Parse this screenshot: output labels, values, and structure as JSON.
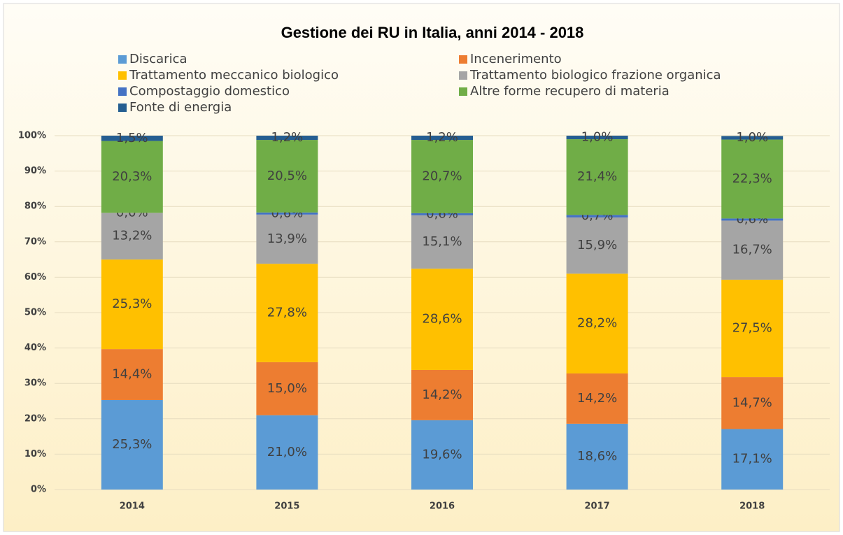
{
  "chart_data": {
    "type": "stacked_bar",
    "title": "Gestione dei RU in Italia, anni 2014 - 2018",
    "categories": [
      "2014",
      "2015",
      "2016",
      "2017",
      "2018"
    ],
    "series": [
      {
        "name": "Discarica",
        "color": "#5b9bd5",
        "values": [
          25.3,
          21.0,
          19.6,
          18.6,
          17.1
        ],
        "value_labels": [
          "25,3%",
          "21,0%",
          "19,6%",
          "18,6%",
          "17,1%"
        ]
      },
      {
        "name": "Incenerimento",
        "color": "#ed7d31",
        "values": [
          14.4,
          15.0,
          14.2,
          14.2,
          14.7
        ],
        "value_labels": [
          "14,4%",
          "15,0%",
          "14,2%",
          "14,2%",
          "14,7%"
        ]
      },
      {
        "name": "Trattamento meccanico biologico",
        "color": "#ffc000",
        "values": [
          25.3,
          27.8,
          28.6,
          28.2,
          27.5
        ],
        "value_labels": [
          "25,3%",
          "27,8%",
          "28,6%",
          "28,2%",
          "27,5%"
        ]
      },
      {
        "name": "Trattamento biologico frazione organica",
        "color": "#a5a5a5",
        "values": [
          13.2,
          13.9,
          15.1,
          15.9,
          16.7
        ],
        "value_labels": [
          "13,2%",
          "13,9%",
          "15,1%",
          "15,9%",
          "16,7%"
        ]
      },
      {
        "name": "Compostaggio domestico",
        "color": "#4472c4",
        "values": [
          0.0,
          0.6,
          0.6,
          0.7,
          0.6
        ],
        "value_labels": [
          "0,0%",
          "0,6%",
          "0,6%",
          "0,7%",
          "0,6%"
        ]
      },
      {
        "name": "Altre forme recupero di materia",
        "color": "#70ad47",
        "values": [
          20.3,
          20.5,
          20.7,
          21.4,
          22.3
        ],
        "value_labels": [
          "20,3%",
          "20,5%",
          "20,7%",
          "21,4%",
          "22,3%"
        ]
      },
      {
        "name": "Fonte di energia",
        "color": "#255e91",
        "values": [
          1.5,
          1.2,
          1.2,
          1.0,
          1.0
        ],
        "value_labels": [
          "1,5%",
          "1,2%",
          "1,2%",
          "1,0%",
          "1,0%"
        ]
      }
    ],
    "ylim": [
      0,
      100
    ],
    "yticks": [
      {
        "value": 0,
        "label": "0%"
      },
      {
        "value": 10,
        "label": "10%"
      },
      {
        "value": 20,
        "label": "20%"
      },
      {
        "value": 30,
        "label": "30%"
      },
      {
        "value": 40,
        "label": "40%"
      },
      {
        "value": 50,
        "label": "50%"
      },
      {
        "value": 60,
        "label": "60%"
      },
      {
        "value": 70,
        "label": "70%"
      },
      {
        "value": 80,
        "label": "80%"
      },
      {
        "value": 90,
        "label": "90%"
      },
      {
        "value": 100,
        "label": "100%"
      }
    ],
    "grid": true
  }
}
